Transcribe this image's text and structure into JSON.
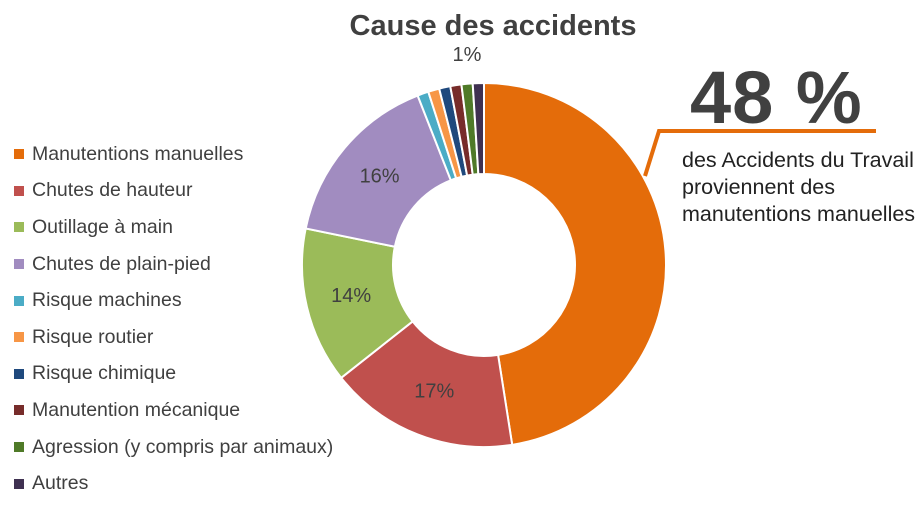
{
  "chart_data": {
    "type": "pie",
    "title": "Cause des accidents",
    "categories": [
      "Manutentions manuelles",
      "Chutes de hauteur",
      "Outillage à main",
      "Chutes de plain-pied",
      "Risque machines",
      "Risque routier",
      "Risque chimique",
      "Manutention mécanique",
      "Agression (y compris par animaux)",
      "Autres"
    ],
    "values": [
      48,
      17,
      14,
      16,
      1,
      1,
      1,
      1,
      1,
      1
    ],
    "data_labels": [
      "",
      "17%",
      "14%",
      "16%",
      "",
      "",
      "",
      "",
      "",
      "1%"
    ],
    "colors": [
      "#E46C0A",
      "#C0504D",
      "#9BBB59",
      "#A18CC0",
      "#4BACC6",
      "#F79646",
      "#1F497D",
      "#772C2A",
      "#4F7A28",
      "#3F3151"
    ],
    "donut": true,
    "legend_position": "left"
  },
  "callout": {
    "value": "48 %",
    "text": "des Accidents du Travail proviennent des manutentions manuelles",
    "accent_color": "#E46C0A"
  }
}
